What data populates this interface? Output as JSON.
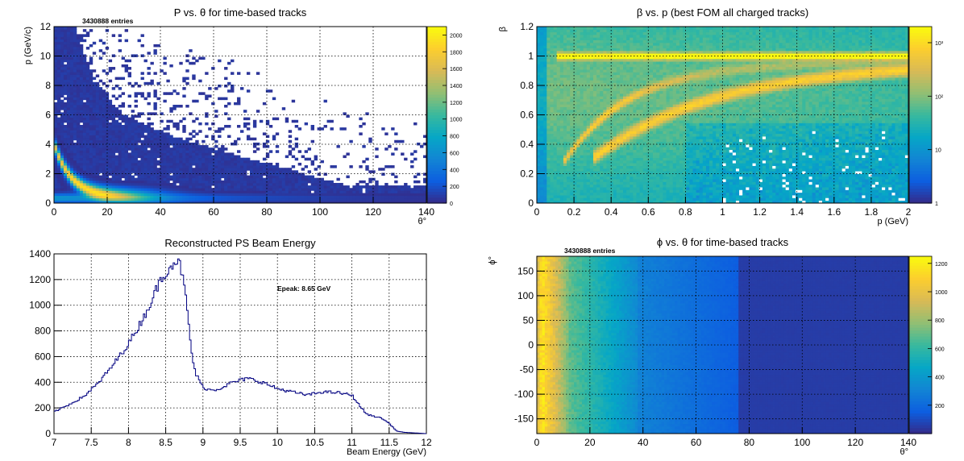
{
  "chart_data": [
    {
      "type": "heatmap",
      "title": "P vs. θ for time-based tracks",
      "stat_label": "3430888 entries",
      "xlabel": "θ°",
      "ylabel": "p (GeV/c)",
      "xlim": [
        0,
        140
      ],
      "ylim": [
        0,
        12
      ],
      "x_ticks": [
        0,
        20,
        40,
        60,
        80,
        100,
        120,
        140
      ],
      "y_ticks": [
        0,
        2,
        4,
        6,
        8,
        10,
        12
      ],
      "z_scale": "linear",
      "z_range": [
        0,
        2100
      ],
      "colorbar_ticks": [
        0,
        200,
        400,
        600,
        800,
        1000,
        1200,
        1400,
        1600,
        1800,
        2000
      ],
      "grid": true
    },
    {
      "type": "heatmap",
      "title": "β vs. p (best FOM all charged tracks)",
      "xlabel": "p (GeV)",
      "ylabel": "β",
      "xlim": [
        0,
        2
      ],
      "ylim": [
        0,
        1.2
      ],
      "x_ticks": [
        0,
        0.2,
        0.4,
        0.6,
        0.8,
        1,
        1.2,
        1.4,
        1.6,
        1.8,
        2
      ],
      "y_ticks": [
        0,
        0.2,
        0.4,
        0.6,
        0.8,
        1,
        1.2
      ],
      "z_scale": "log",
      "colorbar_ticks": [
        {
          "label": "1",
          "value": 1
        },
        {
          "label": "10",
          "value": 10
        },
        {
          "label": "10²",
          "value": 100
        },
        {
          "label": "10³",
          "value": 1000
        }
      ],
      "grid": true
    },
    {
      "type": "line",
      "style": "histogram-step",
      "title": "Reconstructed PS Beam Energy",
      "xlabel": "Beam Energy (GeV)",
      "ylabel": "",
      "annotation": "Epeak: 8.65 GeV",
      "xlim": [
        7,
        12
      ],
      "ylim": [
        0,
        1400
      ],
      "x_ticks": [
        7,
        7.5,
        8,
        8.5,
        9,
        9.5,
        10,
        10.5,
        11,
        11.5,
        12
      ],
      "y_ticks": [
        0,
        200,
        400,
        600,
        800,
        1000,
        1200,
        1400
      ],
      "grid": true,
      "color": "#000080",
      "points": [
        [
          7.0,
          170
        ],
        [
          7.2,
          225
        ],
        [
          7.4,
          290
        ],
        [
          7.6,
          395
        ],
        [
          7.8,
          540
        ],
        [
          8.0,
          700
        ],
        [
          8.1,
          800
        ],
        [
          8.2,
          900
        ],
        [
          8.3,
          1020
        ],
        [
          8.4,
          1160
        ],
        [
          8.5,
          1260
        ],
        [
          8.6,
          1330
        ],
        [
          8.65,
          1350
        ],
        [
          8.7,
          1300
        ],
        [
          8.75,
          1150
        ],
        [
          8.8,
          900
        ],
        [
          8.85,
          620
        ],
        [
          8.9,
          470
        ],
        [
          9.0,
          360
        ],
        [
          9.1,
          340
        ],
        [
          9.2,
          345
        ],
        [
          9.4,
          400
        ],
        [
          9.6,
          430
        ],
        [
          9.8,
          400
        ],
        [
          10.0,
          350
        ],
        [
          10.2,
          325
        ],
        [
          10.4,
          300
        ],
        [
          10.6,
          325
        ],
        [
          10.8,
          320
        ],
        [
          11.0,
          300
        ],
        [
          11.1,
          220
        ],
        [
          11.2,
          150
        ],
        [
          11.3,
          135
        ],
        [
          11.4,
          120
        ],
        [
          11.5,
          80
        ],
        [
          11.6,
          20
        ],
        [
          11.7,
          10
        ],
        [
          12.0,
          0
        ]
      ]
    },
    {
      "type": "heatmap",
      "title": "ϕ vs. θ for time-based tracks",
      "stat_label": "3430888 entries",
      "xlabel": "θ°",
      "ylabel": "ϕ°",
      "xlim": [
        0,
        140
      ],
      "ylim": [
        -180,
        180
      ],
      "x_ticks": [
        0,
        20,
        40,
        60,
        80,
        100,
        120,
        140
      ],
      "y_ticks": [
        -150,
        -100,
        -50,
        0,
        50,
        100,
        150
      ],
      "z_scale": "linear",
      "z_range": [
        0,
        1250
      ],
      "colorbar_ticks": [
        200,
        400,
        600,
        800,
        1000,
        1200
      ],
      "grid": true
    }
  ],
  "colors": {
    "palette": [
      "#352a87",
      "#0d5ee0",
      "#1285d4",
      "#06a7c6",
      "#38b99e",
      "#92bf73",
      "#d9ba56",
      "#fcce2e",
      "#f9fb0e"
    ],
    "background": "#ffffff",
    "grid": "#000000"
  }
}
